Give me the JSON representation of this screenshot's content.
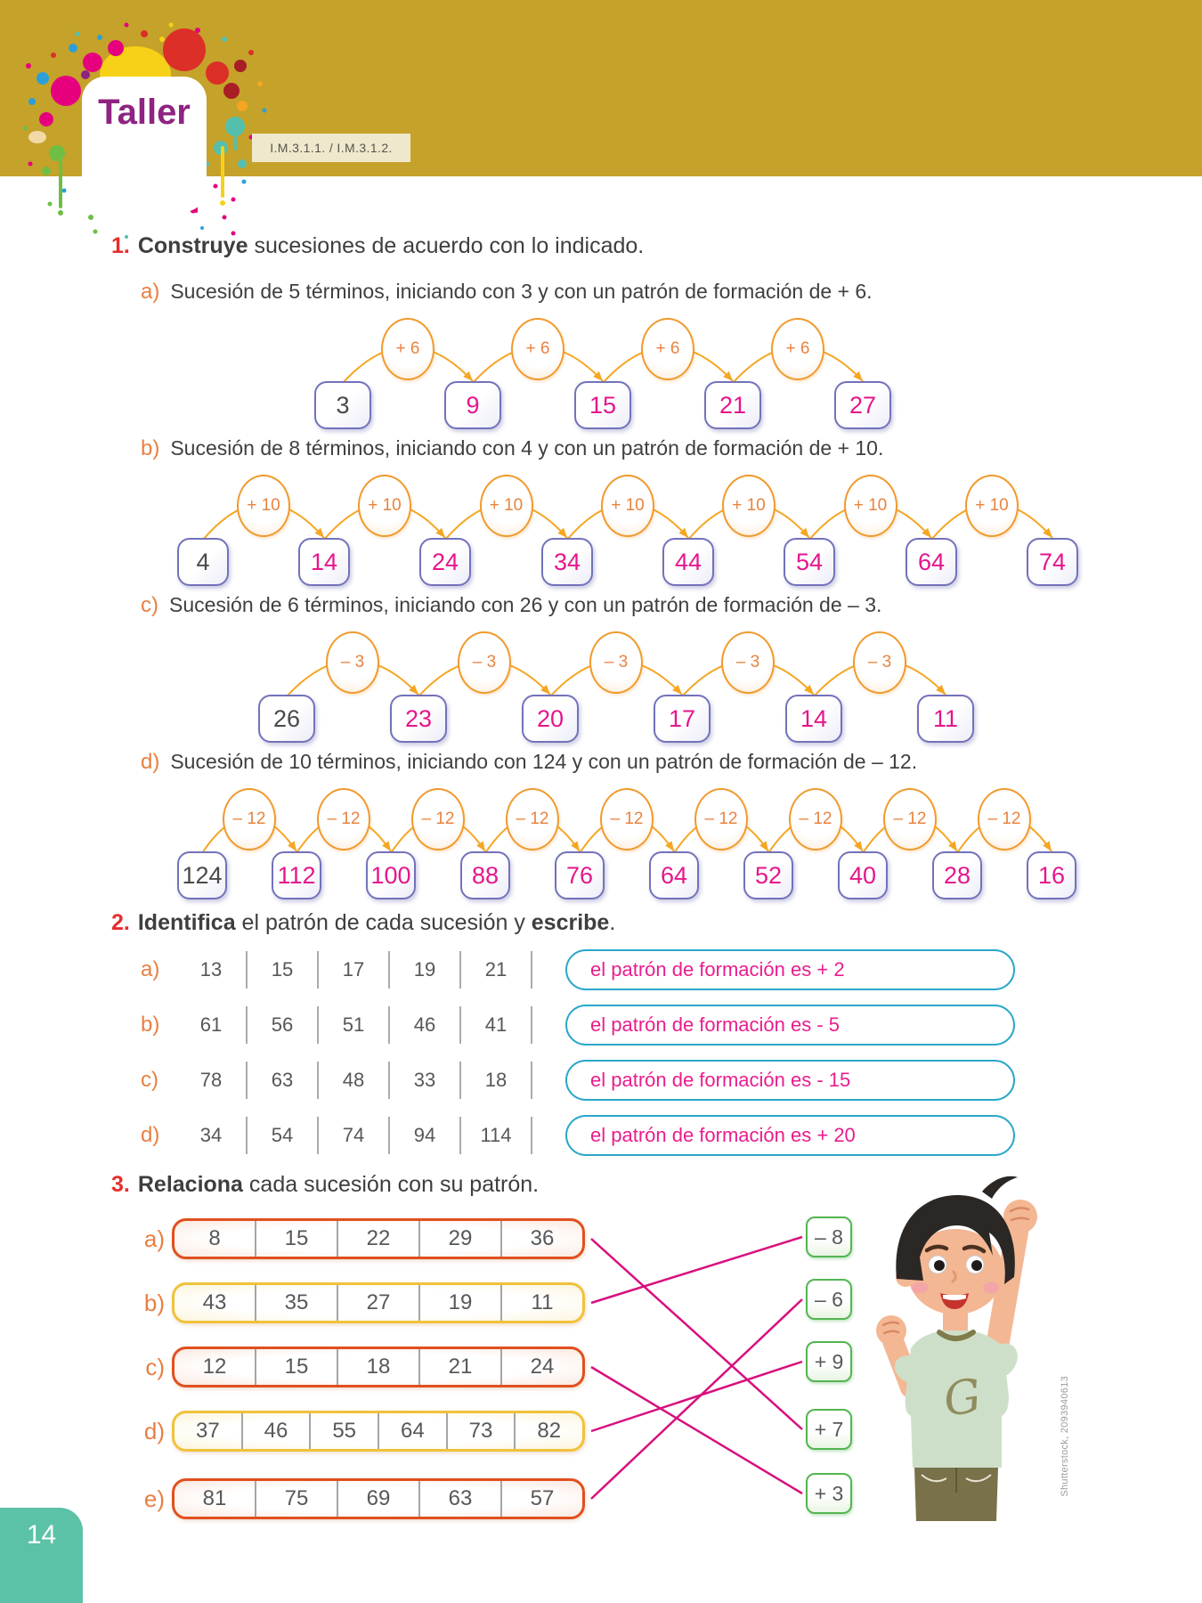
{
  "page": {
    "title": "Taller",
    "standard_code": "I.M.3.1.1. / I.M.3.1.2.",
    "page_number": "14",
    "credit": "Shutterstock, 2093940613"
  },
  "colors": {
    "header_band": "#C5A22A",
    "title_purple": "#8E2382",
    "section_red": "#E62E2D",
    "label_orange": "#E87F42",
    "answer_magenta": "#E5168C",
    "arc_orange": "#F5A623",
    "pill_border_teal": "#2BA7C9",
    "pattern_green": "#53B552",
    "page_teal": "#5BC2A7",
    "connection_magenta": "#D8107E"
  },
  "exercise1": {
    "number": "1.",
    "verb": "Construye",
    "title_rest": " sucesiones de acuerdo con lo indicado.",
    "items": [
      {
        "label": "a)",
        "instruction": "Sucesión de 5 términos, iniciando con 3 y con un patrón de formación de + 6.",
        "step": "+ 6",
        "terms": [
          "3",
          "9",
          "15",
          "21",
          "27"
        ]
      },
      {
        "label": "b)",
        "instruction": "Sucesión de 8 términos, iniciando con 4 y con un patrón de formación de + 10.",
        "step": "+ 10",
        "terms": [
          "4",
          "14",
          "24",
          "34",
          "44",
          "54",
          "64",
          "74"
        ]
      },
      {
        "label": "c)",
        "instruction": "Sucesión de 6 términos, iniciando con 26 y con un patrón de formación de – 3.",
        "step": "– 3",
        "terms": [
          "26",
          "23",
          "20",
          "17",
          "14",
          "11"
        ]
      },
      {
        "label": "d)",
        "instruction": "Sucesión de 10 términos, iniciando con 124 y con un patrón de formación de – 12.",
        "step": "– 12",
        "terms": [
          "124",
          "112",
          "100",
          "88",
          "76",
          "64",
          "52",
          "40",
          "28",
          "16"
        ]
      }
    ]
  },
  "exercise2": {
    "number": "2.",
    "verb": "Identifica",
    "middle": " el patrón de cada sucesión y ",
    "verb2": "escribe",
    "period": ".",
    "rows": [
      {
        "label": "a)",
        "terms": [
          "13",
          "15",
          "17",
          "19",
          "21"
        ],
        "answer": "el patrón de formación es + 2"
      },
      {
        "label": "b)",
        "terms": [
          "61",
          "56",
          "51",
          "46",
          "41"
        ],
        "answer": "el patrón de formación es - 5"
      },
      {
        "label": "c)",
        "terms": [
          "78",
          "63",
          "48",
          "33",
          "18"
        ],
        "answer": "el patrón de formación es - 15"
      },
      {
        "label": "d)",
        "terms": [
          "34",
          "54",
          "74",
          "94",
          "114"
        ],
        "answer": "el patrón de formación es + 20"
      }
    ]
  },
  "exercise3": {
    "number": "3.",
    "verb": "Relaciona",
    "title_rest": " cada sucesión con su patrón.",
    "rows": [
      {
        "label": "a)",
        "terms": [
          "8",
          "15",
          "22",
          "29",
          "36"
        ],
        "style": "red"
      },
      {
        "label": "b)",
        "terms": [
          "43",
          "35",
          "27",
          "19",
          "11"
        ],
        "style": "yellow"
      },
      {
        "label": "c)",
        "terms": [
          "12",
          "15",
          "18",
          "21",
          "24"
        ],
        "style": "red"
      },
      {
        "label": "d)",
        "terms": [
          "37",
          "46",
          "55",
          "64",
          "73",
          "82"
        ],
        "style": "yellow"
      },
      {
        "label": "e)",
        "terms": [
          "81",
          "75",
          "69",
          "63",
          "57"
        ],
        "style": "red"
      }
    ],
    "patterns": [
      "– 8",
      "– 6",
      "+ 9",
      "+ 7",
      "+ 3"
    ],
    "connections": [
      [
        0,
        3
      ],
      [
        1,
        0
      ],
      [
        2,
        4
      ],
      [
        3,
        2
      ],
      [
        4,
        1
      ]
    ]
  },
  "illustration": {
    "shirt_letter": "G"
  }
}
